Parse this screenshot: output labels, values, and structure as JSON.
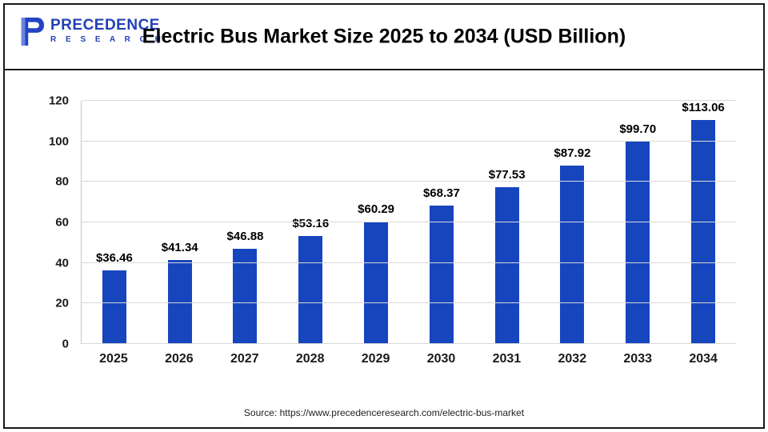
{
  "header": {
    "title": "Electric Bus Market Size 2025 to 2034 (USD Billion)",
    "logo": {
      "name": "Precedence Research",
      "line1": "PRECEDENCE",
      "line2": "R E S E A R C H"
    }
  },
  "footer": {
    "source": "Source: https://www.precedenceresearch.com/electric-bus-market"
  },
  "colors": {
    "bar": "#1745be",
    "grid": "#d9d9d9",
    "logo_blue": "#2141b5"
  },
  "chart_data": {
    "type": "bar",
    "title": "Electric Bus Market Size 2025 to 2034 (USD Billion)",
    "categories": [
      "2025",
      "2026",
      "2027",
      "2028",
      "2029",
      "2030",
      "2031",
      "2032",
      "2033",
      "2034"
    ],
    "values": [
      36.46,
      41.34,
      46.88,
      53.16,
      60.29,
      68.37,
      77.53,
      87.92,
      99.7,
      113.06
    ],
    "value_labels": [
      "$36.46",
      "$41.34",
      "$46.88",
      "$53.16",
      "$60.29",
      "$68.37",
      "$77.53",
      "$87.92",
      "$99.70",
      "$113.06"
    ],
    "xlabel": "",
    "ylabel": "",
    "ylim": [
      0,
      120
    ],
    "yticks": [
      0,
      20,
      40,
      60,
      80,
      100,
      120
    ],
    "grid": true,
    "legend_position": "none"
  }
}
